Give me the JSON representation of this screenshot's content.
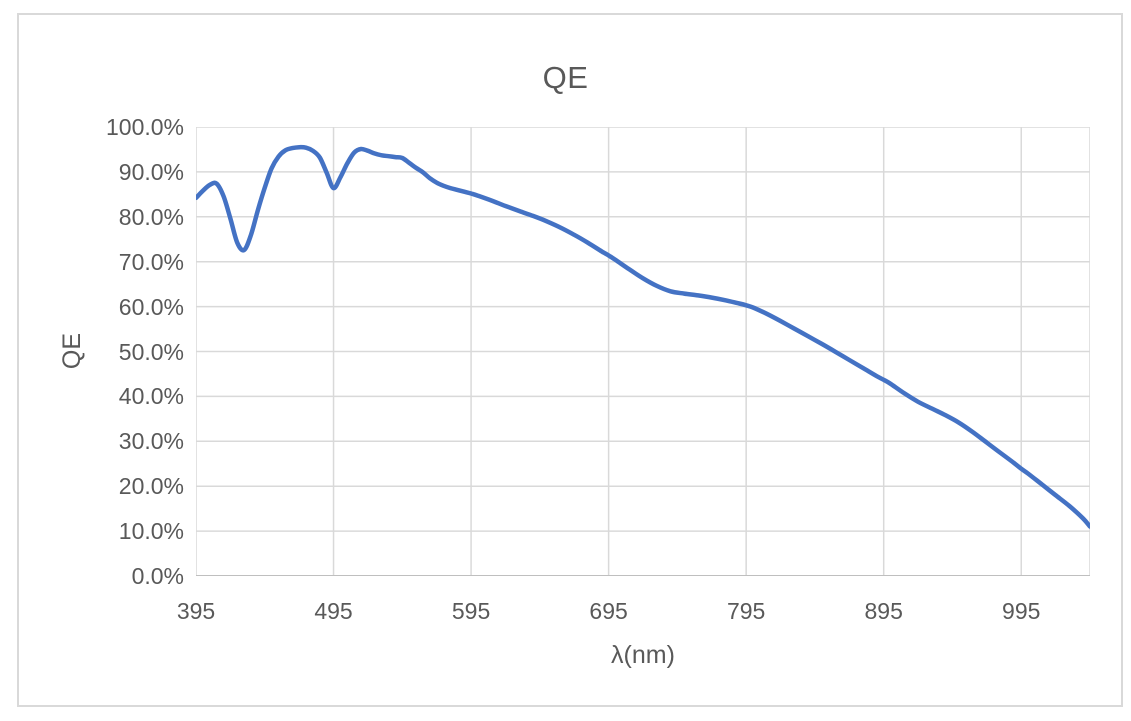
{
  "chart": {
    "title": "QE",
    "x_axis": {
      "title": "λ(nm)",
      "tick_labels": [
        "395",
        "495",
        "595",
        "695",
        "795",
        "895",
        "995"
      ],
      "min": 395,
      "max": 1045,
      "tick_interval": 100
    },
    "y_axis": {
      "title": "QE",
      "tick_labels": [
        "100.0%",
        "90.0%",
        "80.0%",
        "70.0%",
        "60.0%",
        "50.0%",
        "40.0%",
        "30.0%",
        "20.0%",
        "10.0%",
        "0.0%"
      ],
      "min_pct": 0,
      "max_pct": 100,
      "tick_interval_pct": 10
    },
    "colors": {
      "line": "#4472C4",
      "gridline": "#D9D9D9",
      "axis_line": "#BFBFBF",
      "text": "#595959",
      "frame_border": "#D9D9D9",
      "background": "#FFFFFF"
    }
  },
  "chart_data": {
    "type": "line",
    "title": "QE",
    "xlabel": "λ(nm)",
    "ylabel": "QE",
    "xlim": [
      395,
      1045
    ],
    "ylim_pct": [
      0,
      100
    ],
    "x_ticks": [
      395,
      495,
      595,
      695,
      795,
      895,
      995
    ],
    "grid": true,
    "legend": false,
    "series": [
      {
        "name": "QE",
        "color": "#4472C4",
        "points_nm_pct": [
          [
            395,
            84.2
          ],
          [
            400,
            85.8
          ],
          [
            405,
            87.1
          ],
          [
            410,
            87.4
          ],
          [
            415,
            84.6
          ],
          [
            420,
            79.6
          ],
          [
            425,
            74.2
          ],
          [
            430,
            72.6
          ],
          [
            435,
            76.0
          ],
          [
            440,
            81.5
          ],
          [
            445,
            86.5
          ],
          [
            450,
            90.8
          ],
          [
            455,
            93.4
          ],
          [
            460,
            94.8
          ],
          [
            465,
            95.3
          ],
          [
            470,
            95.5
          ],
          [
            475,
            95.4
          ],
          [
            480,
            94.7
          ],
          [
            485,
            93.2
          ],
          [
            490,
            89.8
          ],
          [
            495,
            86.4
          ],
          [
            500,
            88.8
          ],
          [
            505,
            91.9
          ],
          [
            510,
            94.3
          ],
          [
            515,
            95.1
          ],
          [
            520,
            94.7
          ],
          [
            525,
            94.1
          ],
          [
            530,
            93.7
          ],
          [
            535,
            93.5
          ],
          [
            540,
            93.3
          ],
          [
            545,
            93.1
          ],
          [
            550,
            92.0
          ],
          [
            555,
            90.9
          ],
          [
            560,
            89.9
          ],
          [
            565,
            88.6
          ],
          [
            570,
            87.6
          ],
          [
            575,
            86.9
          ],
          [
            580,
            86.4
          ],
          [
            585,
            86.0
          ],
          [
            590,
            85.6
          ],
          [
            595,
            85.2
          ],
          [
            600,
            84.7
          ],
          [
            610,
            83.6
          ],
          [
            620,
            82.4
          ],
          [
            630,
            81.3
          ],
          [
            640,
            80.2
          ],
          [
            650,
            79.0
          ],
          [
            660,
            77.6
          ],
          [
            670,
            76.0
          ],
          [
            680,
            74.2
          ],
          [
            690,
            72.3
          ],
          [
            695,
            71.4
          ],
          [
            700,
            70.4
          ],
          [
            710,
            68.3
          ],
          [
            720,
            66.3
          ],
          [
            730,
            64.6
          ],
          [
            740,
            63.4
          ],
          [
            750,
            62.9
          ],
          [
            760,
            62.5
          ],
          [
            770,
            62.0
          ],
          [
            780,
            61.4
          ],
          [
            790,
            60.7
          ],
          [
            795,
            60.3
          ],
          [
            800,
            59.8
          ],
          [
            810,
            58.4
          ],
          [
            820,
            56.8
          ],
          [
            830,
            55.1
          ],
          [
            840,
            53.4
          ],
          [
            850,
            51.7
          ],
          [
            860,
            49.9
          ],
          [
            870,
            48.1
          ],
          [
            880,
            46.3
          ],
          [
            890,
            44.5
          ],
          [
            895,
            43.7
          ],
          [
            900,
            42.8
          ],
          [
            910,
            40.7
          ],
          [
            920,
            38.8
          ],
          [
            930,
            37.3
          ],
          [
            940,
            35.8
          ],
          [
            950,
            34.1
          ],
          [
            960,
            32.0
          ],
          [
            970,
            29.7
          ],
          [
            980,
            27.4
          ],
          [
            990,
            25.1
          ],
          [
            995,
            23.9
          ],
          [
            1000,
            22.8
          ],
          [
            1010,
            20.4
          ],
          [
            1020,
            18.0
          ],
          [
            1030,
            15.6
          ],
          [
            1040,
            12.8
          ],
          [
            1045,
            11.0
          ]
        ]
      }
    ]
  }
}
